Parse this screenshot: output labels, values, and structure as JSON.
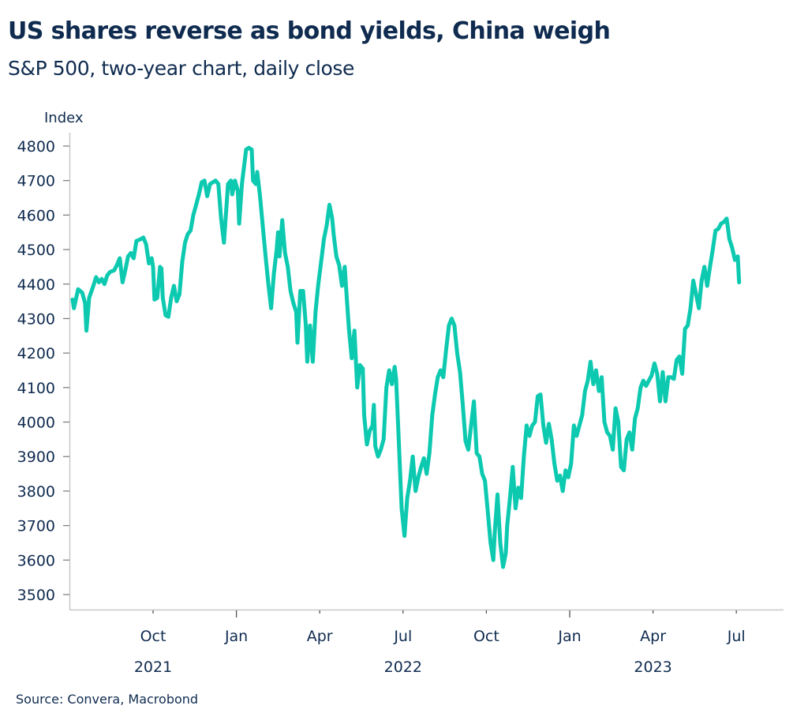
{
  "title": "US shares reverse as bond yields, China weigh",
  "subtitle": "S&P 500, two-year chart, daily close",
  "source": "Source: Convera, Macrobond",
  "colors": {
    "line": "#0cc9b0",
    "text": "#0f2b4f",
    "axis": "#c8c8c8",
    "tick": "#555555"
  },
  "chart_data": {
    "type": "line",
    "title": "US shares reverse as bond yields, China weigh",
    "subtitle": "S&P 500, two-year chart, daily close",
    "ylabel": "Index",
    "xlabel": "",
    "ylim": [
      3500,
      4800
    ],
    "yticks": [
      3500,
      3600,
      3700,
      3800,
      3900,
      4000,
      4100,
      4200,
      4300,
      4400,
      4500,
      4600,
      4700,
      4800
    ],
    "x_unit": "months since 2021-07-01",
    "xlim": [
      0,
      25.8
    ],
    "xticks": [
      {
        "pos": 3,
        "label": "Oct"
      },
      {
        "pos": 6,
        "label": "Jan",
        "year_boundary": true
      },
      {
        "pos": 9,
        "label": "Apr"
      },
      {
        "pos": 12,
        "label": "Jul"
      },
      {
        "pos": 15,
        "label": "Oct"
      },
      {
        "pos": 18,
        "label": "Jan",
        "year_boundary": true
      },
      {
        "pos": 21,
        "label": "Apr"
      },
      {
        "pos": 24,
        "label": "Jul"
      }
    ],
    "year_labels": [
      {
        "pos": 3,
        "label": "2021"
      },
      {
        "pos": 12,
        "label": "2022"
      },
      {
        "pos": 21,
        "label": "2023"
      }
    ],
    "grid": false,
    "legend": "none",
    "series": [
      {
        "name": "S&P 500",
        "points": [
          [
            0.1,
            4355
          ],
          [
            0.15,
            4330
          ],
          [
            0.3,
            4385
          ],
          [
            0.45,
            4375
          ],
          [
            0.55,
            4345
          ],
          [
            0.6,
            4265
          ],
          [
            0.7,
            4360
          ],
          [
            0.85,
            4395
          ],
          [
            0.95,
            4420
          ],
          [
            1.05,
            4405
          ],
          [
            1.15,
            4415
          ],
          [
            1.25,
            4400
          ],
          [
            1.35,
            4425
          ],
          [
            1.45,
            4435
          ],
          [
            1.6,
            4440
          ],
          [
            1.7,
            4455
          ],
          [
            1.8,
            4475
          ],
          [
            1.9,
            4405
          ],
          [
            2.0,
            4440
          ],
          [
            2.1,
            4480
          ],
          [
            2.2,
            4490
          ],
          [
            2.3,
            4475
          ],
          [
            2.4,
            4525
          ],
          [
            2.55,
            4530
          ],
          [
            2.65,
            4535
          ],
          [
            2.75,
            4515
          ],
          [
            2.85,
            4460
          ],
          [
            2.95,
            4475
          ],
          [
            3.0,
            4450
          ],
          [
            3.05,
            4355
          ],
          [
            3.15,
            4360
          ],
          [
            3.25,
            4450
          ],
          [
            3.3,
            4445
          ],
          [
            3.35,
            4360
          ],
          [
            3.45,
            4310
          ],
          [
            3.55,
            4305
          ],
          [
            3.65,
            4360
          ],
          [
            3.75,
            4395
          ],
          [
            3.85,
            4350
          ],
          [
            3.95,
            4370
          ],
          [
            4.05,
            4465
          ],
          [
            4.15,
            4520
          ],
          [
            4.25,
            4545
          ],
          [
            4.35,
            4555
          ],
          [
            4.45,
            4600
          ],
          [
            4.55,
            4630
          ],
          [
            4.65,
            4660
          ],
          [
            4.75,
            4695
          ],
          [
            4.85,
            4700
          ],
          [
            4.95,
            4655
          ],
          [
            5.05,
            4690
          ],
          [
            5.15,
            4695
          ],
          [
            5.25,
            4700
          ],
          [
            5.35,
            4690
          ],
          [
            5.45,
            4590
          ],
          [
            5.55,
            4520
          ],
          [
            5.6,
            4575
          ],
          [
            5.7,
            4690
          ],
          [
            5.8,
            4700
          ],
          [
            5.85,
            4660
          ],
          [
            5.95,
            4700
          ],
          [
            6.05,
            4670
          ],
          [
            6.1,
            4575
          ],
          [
            6.2,
            4690
          ],
          [
            6.35,
            4790
          ],
          [
            6.45,
            4795
          ],
          [
            6.55,
            4790
          ],
          [
            6.6,
            4700
          ],
          [
            6.7,
            4690
          ],
          [
            6.75,
            4725
          ],
          [
            6.85,
            4655
          ],
          [
            7.05,
            4480
          ],
          [
            7.15,
            4400
          ],
          [
            7.25,
            4330
          ],
          [
            7.35,
            4430
          ],
          [
            7.45,
            4500
          ],
          [
            7.5,
            4550
          ],
          [
            7.55,
            4480
          ],
          [
            7.65,
            4585
          ],
          [
            7.75,
            4490
          ],
          [
            7.85,
            4450
          ],
          [
            7.95,
            4380
          ],
          [
            8.05,
            4345
          ],
          [
            8.15,
            4320
          ],
          [
            8.2,
            4230
          ],
          [
            8.3,
            4380
          ],
          [
            8.4,
            4380
          ],
          [
            8.5,
            4280
          ],
          [
            8.55,
            4175
          ],
          [
            8.65,
            4280
          ],
          [
            8.75,
            4175
          ],
          [
            8.85,
            4320
          ],
          [
            8.95,
            4400
          ],
          [
            9.05,
            4465
          ],
          [
            9.15,
            4530
          ],
          [
            9.25,
            4570
          ],
          [
            9.35,
            4630
          ],
          [
            9.45,
            4590
          ],
          [
            9.5,
            4545
          ],
          [
            9.6,
            4480
          ],
          [
            9.7,
            4455
          ],
          [
            9.8,
            4395
          ],
          [
            9.9,
            4450
          ],
          [
            9.95,
            4390
          ],
          [
            10.05,
            4270
          ],
          [
            10.15,
            4185
          ],
          [
            10.25,
            4265
          ],
          [
            10.35,
            4100
          ],
          [
            10.45,
            4165
          ],
          [
            10.55,
            4155
          ],
          [
            10.6,
            4020
          ],
          [
            10.7,
            3935
          ],
          [
            10.8,
            3975
          ],
          [
            10.9,
            3990
          ],
          [
            10.95,
            4050
          ],
          [
            11.0,
            3930
          ],
          [
            11.1,
            3900
          ],
          [
            11.2,
            3920
          ],
          [
            11.3,
            3950
          ],
          [
            11.4,
            4100
          ],
          [
            11.5,
            4150
          ],
          [
            11.6,
            4110
          ],
          [
            11.7,
            4160
          ],
          [
            11.75,
            4125
          ],
          [
            11.85,
            3940
          ],
          [
            11.95,
            3750
          ],
          [
            12.05,
            3670
          ],
          [
            12.15,
            3780
          ],
          [
            12.25,
            3830
          ],
          [
            12.35,
            3900
          ],
          [
            12.45,
            3800
          ],
          [
            12.55,
            3840
          ],
          [
            12.65,
            3870
          ],
          [
            12.75,
            3895
          ],
          [
            12.85,
            3850
          ],
          [
            12.95,
            3910
          ],
          [
            13.05,
            4020
          ],
          [
            13.15,
            4080
          ],
          [
            13.25,
            4130
          ],
          [
            13.35,
            4150
          ],
          [
            13.45,
            4130
          ],
          [
            13.55,
            4210
          ],
          [
            13.65,
            4280
          ],
          [
            13.75,
            4300
          ],
          [
            13.85,
            4280
          ],
          [
            13.95,
            4200
          ],
          [
            14.05,
            4145
          ],
          [
            14.15,
            4050
          ],
          [
            14.25,
            3945
          ],
          [
            14.35,
            3920
          ],
          [
            14.45,
            3990
          ],
          [
            14.55,
            4060
          ],
          [
            14.65,
            3910
          ],
          [
            14.75,
            3900
          ],
          [
            14.85,
            3850
          ],
          [
            14.95,
            3830
          ],
          [
            15.05,
            3740
          ],
          [
            15.15,
            3650
          ],
          [
            15.25,
            3600
          ],
          [
            15.3,
            3680
          ],
          [
            15.4,
            3790
          ],
          [
            15.5,
            3650
          ],
          [
            15.6,
            3580
          ],
          [
            15.7,
            3620
          ],
          [
            15.75,
            3700
          ],
          [
            15.85,
            3780
          ],
          [
            15.95,
            3870
          ],
          [
            16.05,
            3750
          ],
          [
            16.15,
            3810
          ],
          [
            16.25,
            3780
          ],
          [
            16.35,
            3900
          ],
          [
            16.45,
            3990
          ],
          [
            16.55,
            3960
          ],
          [
            16.65,
            3990
          ],
          [
            16.75,
            4000
          ],
          [
            16.85,
            4075
          ],
          [
            16.95,
            4080
          ],
          [
            17.05,
            3990
          ],
          [
            17.15,
            3940
          ],
          [
            17.25,
            3995
          ],
          [
            17.35,
            3950
          ],
          [
            17.45,
            3880
          ],
          [
            17.55,
            3830
          ],
          [
            17.65,
            3845
          ],
          [
            17.75,
            3800
          ],
          [
            17.85,
            3860
          ],
          [
            17.95,
            3840
          ],
          [
            18.05,
            3880
          ],
          [
            18.15,
            3990
          ],
          [
            18.25,
            3960
          ],
          [
            18.35,
            3990
          ],
          [
            18.45,
            4020
          ],
          [
            18.55,
            4090
          ],
          [
            18.65,
            4120
          ],
          [
            18.75,
            4175
          ],
          [
            18.85,
            4110
          ],
          [
            18.95,
            4150
          ],
          [
            19.05,
            4090
          ],
          [
            19.15,
            4130
          ],
          [
            19.25,
            4000
          ],
          [
            19.35,
            3970
          ],
          [
            19.45,
            3960
          ],
          [
            19.55,
            3920
          ],
          [
            19.65,
            4040
          ],
          [
            19.75,
            4000
          ],
          [
            19.85,
            3870
          ],
          [
            19.95,
            3860
          ],
          [
            20.05,
            3950
          ],
          [
            20.15,
            3970
          ],
          [
            20.25,
            3920
          ],
          [
            20.35,
            4010
          ],
          [
            20.45,
            4040
          ],
          [
            20.55,
            4100
          ],
          [
            20.65,
            4120
          ],
          [
            20.75,
            4105
          ],
          [
            20.85,
            4120
          ],
          [
            20.95,
            4135
          ],
          [
            21.05,
            4170
          ],
          [
            21.15,
            4140
          ],
          [
            21.25,
            4060
          ],
          [
            21.35,
            4145
          ],
          [
            21.45,
            4060
          ],
          [
            21.55,
            4130
          ],
          [
            21.65,
            4130
          ],
          [
            21.75,
            4125
          ],
          [
            21.85,
            4180
          ],
          [
            21.95,
            4190
          ],
          [
            22.05,
            4140
          ],
          [
            22.15,
            4270
          ],
          [
            22.25,
            4280
          ],
          [
            22.35,
            4330
          ],
          [
            22.45,
            4410
          ],
          [
            22.55,
            4370
          ],
          [
            22.65,
            4330
          ],
          [
            22.75,
            4410
          ],
          [
            22.85,
            4450
          ],
          [
            22.95,
            4395
          ],
          [
            23.05,
            4450
          ],
          [
            23.15,
            4500
          ],
          [
            23.25,
            4555
          ],
          [
            23.35,
            4560
          ],
          [
            23.45,
            4575
          ],
          [
            23.55,
            4580
          ],
          [
            23.65,
            4590
          ],
          [
            23.75,
            4530
          ],
          [
            23.85,
            4505
          ],
          [
            23.95,
            4470
          ],
          [
            24.05,
            4480
          ],
          [
            24.1,
            4405
          ]
        ]
      }
    ]
  }
}
